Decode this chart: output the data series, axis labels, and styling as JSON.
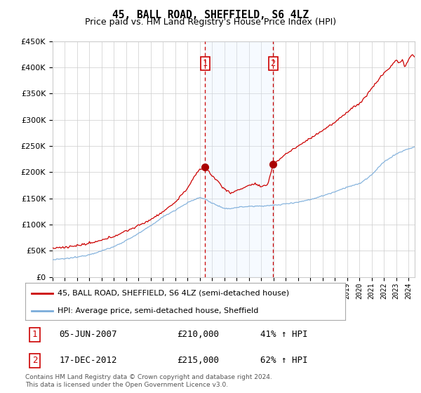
{
  "title": "45, BALL ROAD, SHEFFIELD, S6 4LZ",
  "subtitle": "Price paid vs. HM Land Registry's House Price Index (HPI)",
  "legend_line1": "45, BALL ROAD, SHEFFIELD, S6 4LZ (semi-detached house)",
  "legend_line2": "HPI: Average price, semi-detached house, Sheffield",
  "footer": "Contains HM Land Registry data © Crown copyright and database right 2024.\nThis data is licensed under the Open Government Licence v3.0.",
  "purchase1_date": "05-JUN-2007",
  "purchase1_price": "£210,000",
  "purchase1_pct": "41% ↑ HPI",
  "purchase2_date": "17-DEC-2012",
  "purchase2_price": "£215,000",
  "purchase2_pct": "62% ↑ HPI",
  "vline1_x": 2007.43,
  "vline2_x": 2012.96,
  "marker1_y": 210000,
  "marker2_y": 215000,
  "ylim": [
    0,
    450000
  ],
  "xlim_start": 1995.0,
  "xlim_end": 2024.5,
  "red_color": "#cc0000",
  "blue_color": "#7aacda",
  "shade_color": "#ddeeff",
  "background_color": "#ffffff",
  "grid_color": "#cccccc",
  "hpi_knots_x": [
    1995.0,
    1996,
    1997,
    1998,
    1999,
    2000,
    2001,
    2002,
    2003,
    2004,
    2005,
    2006,
    2007.0,
    2007.5,
    2008.0,
    2008.5,
    2009.0,
    2009.5,
    2010.0,
    2010.5,
    2011.0,
    2011.5,
    2012.0,
    2012.5,
    2013.0,
    2013.5,
    2014.0,
    2015.0,
    2016.0,
    2017.0,
    2018.0,
    2019.0,
    2020.0,
    2021.0,
    2022.0,
    2023.0,
    2024.0,
    2024.5
  ],
  "hpi_knots_y": [
    33000,
    35000,
    38000,
    43000,
    50000,
    58000,
    70000,
    83000,
    98000,
    115000,
    128000,
    142000,
    152000,
    148000,
    141000,
    136000,
    130000,
    131000,
    133000,
    134000,
    135000,
    135000,
    136000,
    136000,
    137000,
    138000,
    140000,
    143000,
    148000,
    155000,
    163000,
    172000,
    178000,
    195000,
    220000,
    235000,
    245000,
    248000
  ],
  "red_knots_x": [
    1995.0,
    1996,
    1997,
    1998,
    1999,
    2000,
    2001,
    2002,
    2003,
    2004,
    2005,
    2006,
    2006.5,
    2007.0,
    2007.43,
    2007.6,
    2008.0,
    2008.5,
    2009.0,
    2009.5,
    2010.0,
    2010.5,
    2011.0,
    2011.5,
    2012.0,
    2012.5,
    2012.96,
    2013.5,
    2014.0,
    2015.0,
    2016.0,
    2017.0,
    2018.0,
    2018.5,
    2019.0,
    2019.5,
    2020.0,
    2020.5,
    2021.0,
    2021.5,
    2022.0,
    2022.5,
    2023.0,
    2023.2,
    2023.5,
    2023.7,
    2024.0,
    2024.3,
    2024.5
  ],
  "red_knots_y": [
    55000,
    57000,
    60000,
    64000,
    70000,
    78000,
    88000,
    98000,
    110000,
    125000,
    143000,
    170000,
    190000,
    205000,
    210000,
    205000,
    193000,
    182000,
    168000,
    160000,
    165000,
    170000,
    175000,
    178000,
    172000,
    175000,
    215000,
    225000,
    235000,
    250000,
    265000,
    280000,
    295000,
    305000,
    315000,
    325000,
    330000,
    345000,
    360000,
    375000,
    390000,
    400000,
    415000,
    408000,
    415000,
    400000,
    415000,
    425000,
    420000
  ]
}
